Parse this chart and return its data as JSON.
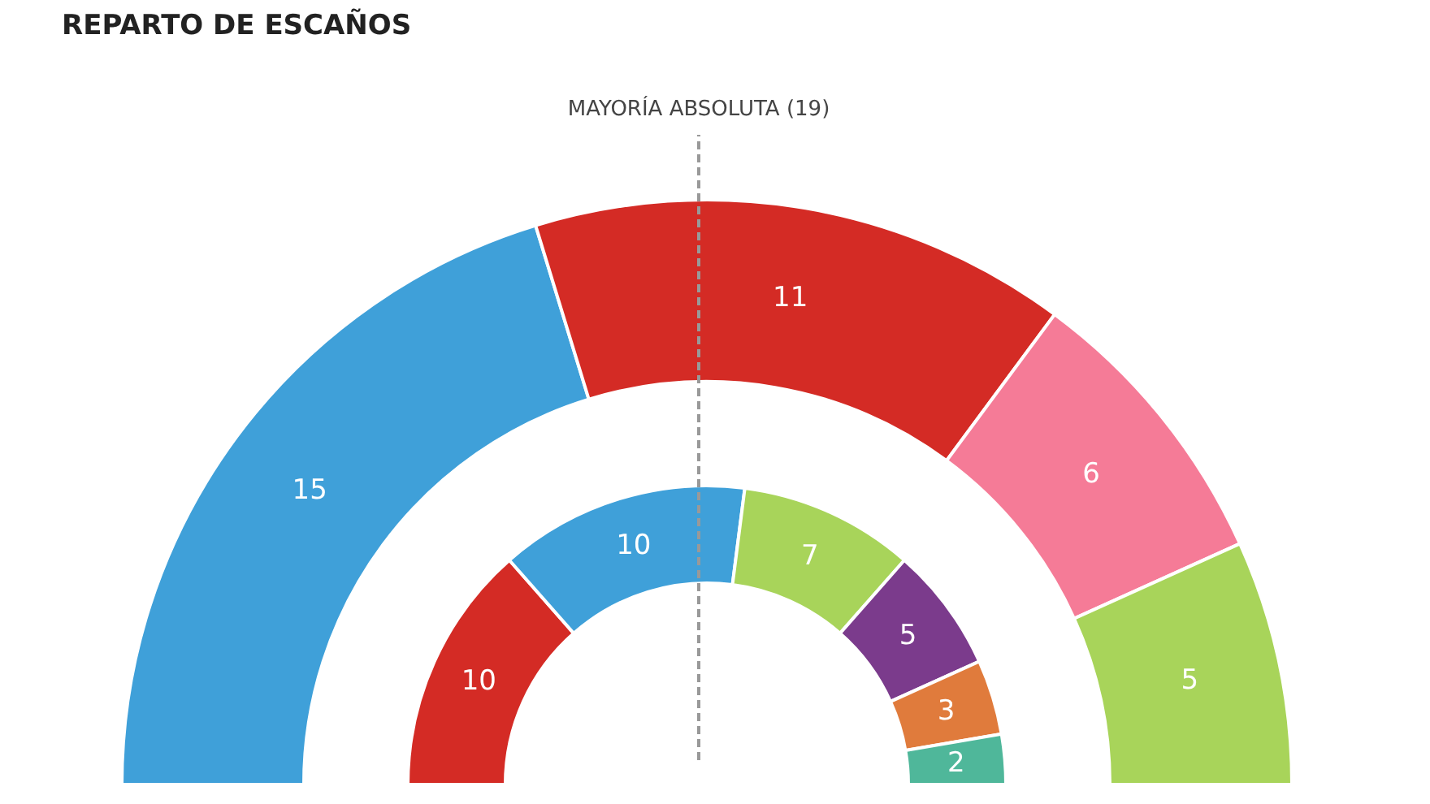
{
  "chart_data": [
    {
      "type": "donut",
      "title": "REPARTO DE ESCAÑOS",
      "categories": [
        null,
        null,
        null,
        null
      ],
      "values": [
        15,
        11,
        6,
        5
      ],
      "colors": [
        "#3fa0d9",
        "#d42b25",
        "#f57b97",
        "#a8d45a"
      ],
      "data_labels": true,
      "annotations": [
        "MAYORÍA ABSOLUTA (19)"
      ]
    },
    {
      "type": "donut",
      "categories": [
        null,
        null,
        null,
        null,
        null,
        null
      ],
      "values": [
        10,
        10,
        7,
        5,
        3,
        2
      ],
      "colors": [
        "#d42b25",
        "#3fa0d9",
        "#a8d45a",
        "#7b3b8c",
        "#e07b3c",
        "#4fb79a"
      ],
      "data_labels": true
    }
  ]
}
